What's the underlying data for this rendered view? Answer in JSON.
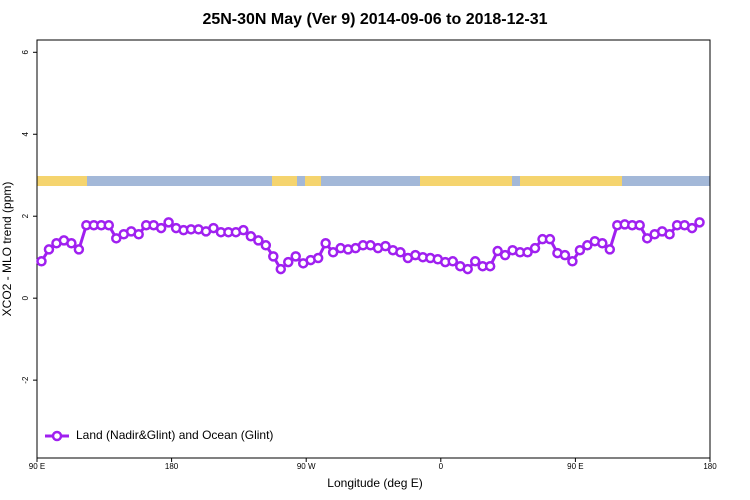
{
  "chart_data": {
    "type": "line",
    "title": "25N-30N May (Ver 9)   2014-09-06 to 2018-12-31",
    "x_label": "Longitude (deg E)",
    "y_label": "XCO2 - MLO trend (ppm)",
    "x": [
      93,
      98,
      103,
      108,
      113,
      118,
      123,
      128,
      133,
      138,
      143,
      148,
      153,
      158,
      163,
      168,
      173,
      178,
      183,
      188,
      193,
      198,
      203,
      208,
      213,
      218,
      223,
      228,
      233,
      238,
      243,
      248,
      253,
      258,
      263,
      268,
      273,
      278,
      283,
      288,
      293,
      298,
      303,
      308,
      313,
      318,
      323,
      328,
      333,
      338,
      343,
      348,
      353,
      358,
      363,
      368,
      373,
      378,
      383,
      388,
      393,
      398,
      403,
      408,
      413,
      418,
      423,
      428,
      433,
      438,
      443,
      448,
      453,
      458,
      463,
      468,
      473,
      478,
      483,
      488,
      493,
      498,
      503,
      508,
      513,
      518,
      523,
      528,
      533
    ],
    "series": [
      {
        "name": "Land (Nadir&Glint) and Ocean (Glint)",
        "color": "#a020f0",
        "values": [
          0.9,
          1.19,
          1.34,
          1.41,
          1.34,
          1.19,
          1.78,
          1.78,
          1.78,
          1.78,
          1.46,
          1.56,
          1.63,
          1.56,
          1.78,
          1.78,
          1.71,
          1.85,
          1.71,
          1.66,
          1.68,
          1.68,
          1.63,
          1.71,
          1.61,
          1.61,
          1.61,
          1.66,
          1.51,
          1.41,
          1.29,
          1.02,
          0.71,
          0.88,
          1.02,
          0.85,
          0.93,
          0.98,
          1.34,
          1.12,
          1.22,
          1.19,
          1.22,
          1.29,
          1.29,
          1.22,
          1.27,
          1.17,
          1.12,
          0.98,
          1.05,
          1.0,
          0.98,
          0.95,
          0.88,
          0.9,
          0.78,
          0.71,
          0.9,
          0.78,
          0.78,
          1.15,
          1.05,
          1.17,
          1.12,
          1.12,
          1.22,
          1.44,
          1.44,
          1.1,
          1.05,
          0.9,
          1.17,
          1.29,
          1.39,
          1.34,
          1.19,
          1.78,
          1.8,
          1.78,
          1.78,
          1.46,
          1.56,
          1.63,
          1.56,
          1.78,
          1.78,
          1.71,
          1.85
        ]
      }
    ],
    "xlim": [
      90,
      540
    ],
    "xticks": [
      {
        "value": 90,
        "label": "90 E"
      },
      180,
      {
        "value": 270,
        "label": "90 W"
      },
      {
        "value": 360,
        "label": "0"
      },
      {
        "value": 450,
        "label": "90 E"
      },
      {
        "value": 540,
        "label": "180"
      }
    ],
    "ylim": [
      -3.9,
      6.3
    ],
    "yticks": [
      -2,
      0,
      2,
      4,
      6
    ],
    "legend": "bottom-left"
  }
}
